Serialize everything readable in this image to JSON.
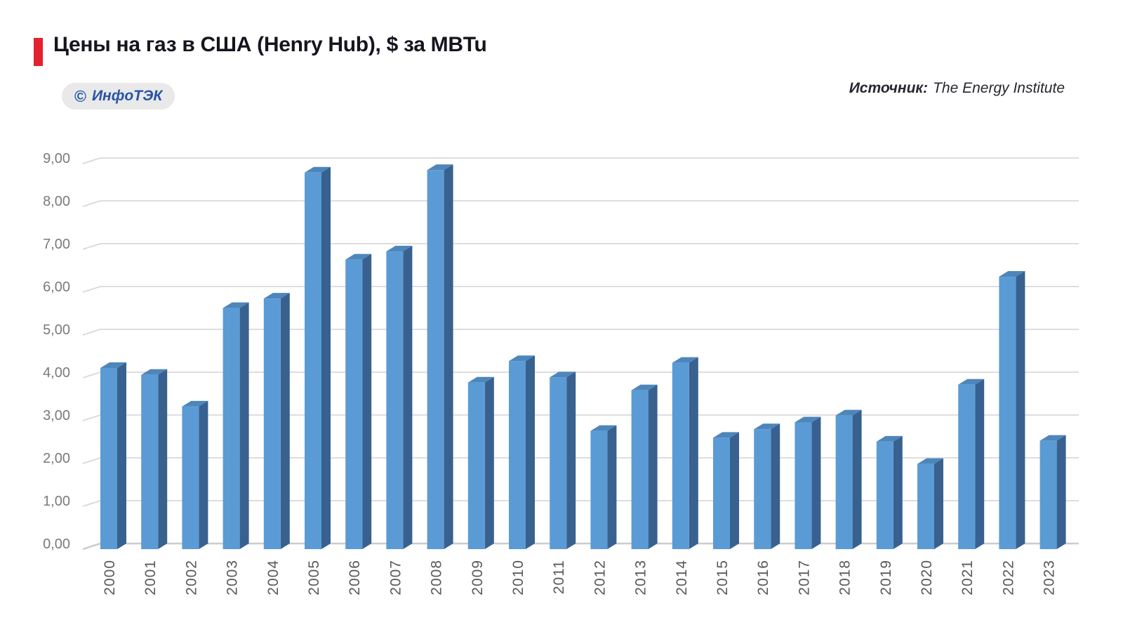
{
  "header": {
    "title": "Цены на газ в США (Henry Hub), $ за MBTu",
    "badge": {
      "copyright_symbol": "©",
      "label": "ИнфоТЭК"
    },
    "source_label": "Источник:",
    "source_value": "The Energy Institute"
  },
  "chart_data": {
    "type": "bar",
    "style": "3d-column",
    "title": "Цены на газ в США (Henry Hub), $ за MBTu",
    "xlabel": "",
    "ylabel": "",
    "ylim": [
      0,
      9
    ],
    "grid": true,
    "legend": "none",
    "categories": [
      "2000",
      "2001",
      "2002",
      "2003",
      "2004",
      "2005",
      "2006",
      "2007",
      "2008",
      "2009",
      "2010",
      "2011",
      "2012",
      "2013",
      "2014",
      "2015",
      "2016",
      "2017",
      "2018",
      "2019",
      "2020",
      "2021",
      "2022",
      "2023"
    ],
    "values": [
      4.23,
      4.07,
      3.33,
      5.63,
      5.85,
      8.79,
      6.76,
      6.95,
      8.85,
      3.89,
      4.39,
      4.01,
      2.76,
      3.71,
      4.35,
      2.6,
      2.8,
      2.96,
      3.12,
      2.51,
      1.99,
      3.84,
      6.36,
      2.53
    ],
    "y_tick_labels": [
      "0,00",
      "1,00",
      "2,00",
      "3,00",
      "4,00",
      "5,00",
      "6,00",
      "7,00",
      "8,00",
      "9,00"
    ]
  },
  "colors": {
    "accent_red": "#e3212f",
    "title_color": "#15151e",
    "badge_blue": "#2953a4",
    "badge_bg": "#e9e9e9",
    "bar_front": "#5b9bd5",
    "bar_side": "#38618f",
    "bar_top": "#4d86bb",
    "gridline": "#d9d9d9",
    "axis_line": "#cccccc",
    "tick_label": "#7a7a7a",
    "x_label": "#595959"
  }
}
